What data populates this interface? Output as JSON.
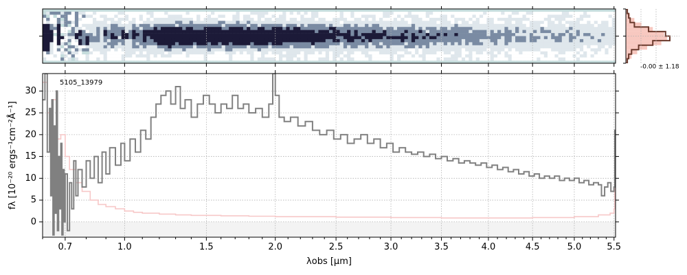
{
  "chart_data": [
    {
      "panel": "spectrum-2d",
      "type": "heatmap",
      "colormap": [
        "#c5dcdc",
        "#ffffff",
        "#7a8ba3",
        "#1c1a38"
      ],
      "background_color": "#c5dcdc"
    },
    {
      "panel": "noise-histogram",
      "type": "histogram",
      "annotation": "-0.00 ± 1.18",
      "bins": [
        -3,
        -2.5,
        -2,
        -1.5,
        -1,
        -0.5,
        0,
        0.5,
        1,
        1.5,
        2,
        2.5,
        3
      ],
      "observed_counts": [
        1,
        2,
        3,
        6,
        16,
        28,
        31,
        19,
        9,
        4,
        2,
        1
      ],
      "model_counts": [
        1,
        3,
        6,
        11,
        19,
        27,
        29,
        25,
        15,
        8,
        4,
        1
      ],
      "colors": {
        "observed": "#6b3b2e",
        "model": "#f7c8c0"
      }
    },
    {
      "panel": "spectrum-1d",
      "type": "line",
      "title": "5105_13979",
      "xlabel": "λobs [μm]",
      "ylabel": "fλ [10⁻²⁰ ergs⁻¹cm⁻²Å⁻¹]",
      "xscale": "sqrt",
      "xlim": [
        0.6,
        5.52
      ],
      "ylim": [
        -3.5,
        34
      ],
      "x_ticks": [
        0.7,
        1.0,
        1.5,
        2.0,
        2.5,
        3.0,
        3.5,
        4.0,
        4.5,
        5.0,
        5.5
      ],
      "x_tick_labels": [
        "0.7",
        "1.0",
        "1.5",
        "2.0",
        "2.5",
        "3.0",
        "3.5",
        "4.0",
        "4.5",
        "5.0",
        "5.5"
      ],
      "y_ticks": [
        0,
        5,
        10,
        15,
        20,
        25,
        30
      ],
      "y_tick_labels": [
        "0",
        "5",
        "10",
        "15",
        "20",
        "25",
        "30"
      ],
      "grid": true,
      "series": [
        {
          "role": "flux",
          "color": "#808080",
          "style": "steps",
          "points": [
            [
              0.6,
              28
            ],
            [
              0.61,
              34
            ],
            [
              0.62,
              16
            ],
            [
              0.63,
              26
            ],
            [
              0.635,
              6
            ],
            [
              0.64,
              28
            ],
            [
              0.645,
              -3
            ],
            [
              0.65,
              22
            ],
            [
              0.655,
              2
            ],
            [
              0.66,
              30
            ],
            [
              0.665,
              -2
            ],
            [
              0.67,
              15
            ],
            [
              0.675,
              3
            ],
            [
              0.68,
              18
            ],
            [
              0.685,
              -3
            ],
            [
              0.69,
              12
            ],
            [
              0.695,
              0
            ],
            [
              0.7,
              11
            ],
            [
              0.71,
              -2
            ],
            [
              0.72,
              9
            ],
            [
              0.73,
              3
            ],
            [
              0.74,
              14
            ],
            [
              0.75,
              6
            ],
            [
              0.76,
              12
            ],
            [
              0.78,
              8
            ],
            [
              0.8,
              14
            ],
            [
              0.82,
              10
            ],
            [
              0.84,
              15
            ],
            [
              0.86,
              9
            ],
            [
              0.88,
              16
            ],
            [
              0.9,
              11
            ],
            [
              0.92,
              17
            ],
            [
              0.95,
              13
            ],
            [
              0.98,
              18
            ],
            [
              1.0,
              14
            ],
            [
              1.03,
              19
            ],
            [
              1.06,
              16
            ],
            [
              1.09,
              21
            ],
            [
              1.12,
              19
            ],
            [
              1.15,
              24
            ],
            [
              1.18,
              27
            ],
            [
              1.21,
              29
            ],
            [
              1.24,
              30
            ],
            [
              1.27,
              27
            ],
            [
              1.3,
              31
            ],
            [
              1.33,
              26
            ],
            [
              1.36,
              28
            ],
            [
              1.4,
              24
            ],
            [
              1.44,
              27
            ],
            [
              1.48,
              29
            ],
            [
              1.52,
              27
            ],
            [
              1.56,
              25
            ],
            [
              1.6,
              27
            ],
            [
              1.64,
              26
            ],
            [
              1.68,
              29
            ],
            [
              1.72,
              26
            ],
            [
              1.76,
              27
            ],
            [
              1.8,
              25
            ],
            [
              1.85,
              26
            ],
            [
              1.9,
              24
            ],
            [
              1.95,
              27
            ],
            [
              1.98,
              34
            ],
            [
              2.0,
              29
            ],
            [
              2.03,
              24
            ],
            [
              2.07,
              23
            ],
            [
              2.12,
              24
            ],
            [
              2.18,
              22
            ],
            [
              2.24,
              23
            ],
            [
              2.3,
              21
            ],
            [
              2.36,
              20
            ],
            [
              2.42,
              21
            ],
            [
              2.48,
              19
            ],
            [
              2.54,
              20
            ],
            [
              2.6,
              18
            ],
            [
              2.66,
              19
            ],
            [
              2.72,
              20
            ],
            [
              2.78,
              18
            ],
            [
              2.84,
              19
            ],
            [
              2.9,
              17
            ],
            [
              2.96,
              18
            ],
            [
              3.02,
              16
            ],
            [
              3.08,
              17
            ],
            [
              3.14,
              16
            ],
            [
              3.2,
              15.5
            ],
            [
              3.26,
              16
            ],
            [
              3.32,
              15
            ],
            [
              3.38,
              15.5
            ],
            [
              3.44,
              14.5
            ],
            [
              3.5,
              15
            ],
            [
              3.56,
              14
            ],
            [
              3.62,
              14.5
            ],
            [
              3.68,
              13.5
            ],
            [
              3.74,
              14
            ],
            [
              3.8,
              13.5
            ],
            [
              3.86,
              13
            ],
            [
              3.92,
              13.5
            ],
            [
              3.98,
              12.5
            ],
            [
              4.04,
              13
            ],
            [
              4.1,
              12
            ],
            [
              4.16,
              12.5
            ],
            [
              4.22,
              11.5
            ],
            [
              4.28,
              12
            ],
            [
              4.34,
              11
            ],
            [
              4.4,
              11.5
            ],
            [
              4.46,
              10.5
            ],
            [
              4.52,
              11
            ],
            [
              4.58,
              10
            ],
            [
              4.64,
              10.5
            ],
            [
              4.7,
              10
            ],
            [
              4.76,
              10.5
            ],
            [
              4.82,
              9.5
            ],
            [
              4.88,
              10
            ],
            [
              4.94,
              9.5
            ],
            [
              5.0,
              10
            ],
            [
              5.06,
              9
            ],
            [
              5.12,
              9.5
            ],
            [
              5.18,
              8.5
            ],
            [
              5.24,
              9
            ],
            [
              5.3,
              8.5
            ],
            [
              5.34,
              6
            ],
            [
              5.38,
              8
            ],
            [
              5.42,
              9
            ],
            [
              5.46,
              7
            ],
            [
              5.5,
              8
            ],
            [
              5.51,
              21
            ]
          ]
        },
        {
          "role": "uncertainty",
          "color": "#f7c8c8",
          "style": "steps",
          "points": [
            [
              0.6,
              32
            ],
            [
              0.62,
              25
            ],
            [
              0.64,
              28
            ],
            [
              0.66,
              19
            ],
            [
              0.68,
              20
            ],
            [
              0.7,
              15
            ],
            [
              0.72,
              12
            ],
            [
              0.75,
              9
            ],
            [
              0.78,
              7
            ],
            [
              0.82,
              5
            ],
            [
              0.86,
              4
            ],
            [
              0.9,
              3.5
            ],
            [
              0.95,
              3
            ],
            [
              1.0,
              2.5
            ],
            [
              1.05,
              2.2
            ],
            [
              1.1,
              2
            ],
            [
              1.2,
              1.8
            ],
            [
              1.3,
              1.6
            ],
            [
              1.4,
              1.5
            ],
            [
              1.6,
              1.4
            ],
            [
              1.8,
              1.3
            ],
            [
              2.0,
              1.2
            ],
            [
              2.5,
              1.1
            ],
            [
              3.0,
              1.0
            ],
            [
              3.5,
              0.9
            ],
            [
              4.0,
              0.9
            ],
            [
              4.5,
              1.0
            ],
            [
              5.0,
              1.2
            ],
            [
              5.3,
              1.6
            ],
            [
              5.45,
              2
            ],
            [
              5.5,
              3
            ],
            [
              5.51,
              13
            ]
          ]
        }
      ]
    }
  ]
}
